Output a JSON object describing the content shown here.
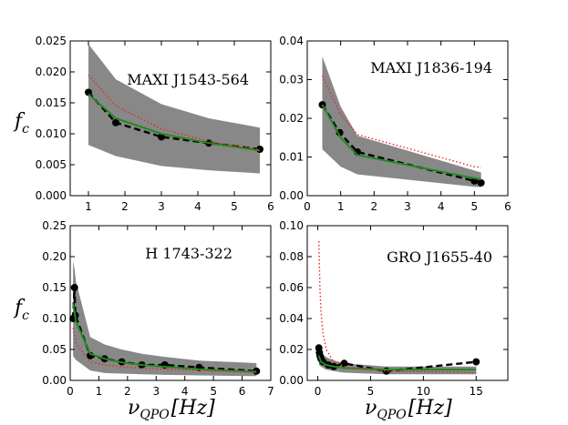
{
  "figure": {
    "y_axis_label": "f",
    "y_axis_label_sub": "c",
    "x_axis_label": "ν",
    "x_axis_label_sub": "QPO",
    "x_axis_label_units": "[Hz]"
  },
  "chart_data": [
    {
      "type": "line",
      "label": "MAXI J1543-564",
      "xlim": [
        0.5,
        6
      ],
      "ylim": [
        0,
        0.025
      ],
      "xticks": [
        1,
        2,
        3,
        4,
        5,
        6
      ],
      "xtick_labels": [
        "1",
        "2",
        "3",
        "4",
        "5",
        "6"
      ],
      "yticks": [
        0.0,
        0.005,
        0.01,
        0.015,
        0.02,
        0.025
      ],
      "ytick_labels": [
        "0.000",
        "0.005",
        "0.010",
        "0.015",
        "0.020",
        "0.025"
      ],
      "band": {
        "x": [
          1.0,
          1.75,
          3.0,
          4.3,
          5.7
        ],
        "upper": [
          0.0245,
          0.0188,
          0.0148,
          0.0125,
          0.011
        ],
        "lower": [
          0.0082,
          0.0064,
          0.0048,
          0.0041,
          0.0036
        ]
      },
      "series": [
        {
          "name": "data",
          "style": "black-dashed-markers",
          "x": [
            1.0,
            1.75,
            3.0,
            4.3,
            5.7
          ],
          "y": [
            0.0167,
            0.0118,
            0.0095,
            0.0085,
            0.0075
          ]
        },
        {
          "name": "model",
          "style": "green-solid",
          "x": [
            1.0,
            1.75,
            3.0,
            4.3,
            5.7
          ],
          "y": [
            0.0164,
            0.0125,
            0.01,
            0.0085,
            0.0073
          ]
        },
        {
          "name": "model-upper",
          "style": "red-dotted",
          "x": [
            1.0,
            1.75,
            3.0,
            4.3,
            5.7
          ],
          "y": [
            0.0195,
            0.0145,
            0.0108,
            0.0088,
            0.0075
          ]
        }
      ]
    },
    {
      "type": "line",
      "label": "MAXI J1836-194",
      "xlim": [
        0,
        6
      ],
      "ylim": [
        0,
        0.04
      ],
      "xticks": [
        0,
        1,
        2,
        3,
        4,
        5,
        6
      ],
      "xtick_labels": [
        "0",
        "1",
        "2",
        "3",
        "4",
        "5",
        "6"
      ],
      "yticks": [
        0.0,
        0.01,
        0.02,
        0.03,
        0.04
      ],
      "ytick_labels": [
        "0.00",
        "0.01",
        "0.02",
        "0.03",
        "0.04"
      ],
      "band": {
        "x": [
          0.45,
          1.0,
          1.5,
          5.0,
          5.2
        ],
        "upper": [
          0.036,
          0.023,
          0.0155,
          0.0065,
          0.006
        ],
        "lower": [
          0.012,
          0.0075,
          0.0055,
          0.0023,
          0.0022
        ]
      },
      "series": [
        {
          "name": "data",
          "style": "black-dashed-markers",
          "x": [
            0.45,
            0.97,
            1.5,
            5.0,
            5.2
          ],
          "y": [
            0.0235,
            0.0163,
            0.0113,
            0.0038,
            0.0033
          ]
        },
        {
          "name": "model",
          "style": "green-solid",
          "x": [
            0.45,
            1.0,
            1.5,
            5.0,
            5.2
          ],
          "y": [
            0.0235,
            0.015,
            0.0105,
            0.0045,
            0.0042
          ]
        },
        {
          "name": "model-upper",
          "style": "red-dotted",
          "x": [
            0.45,
            1.0,
            1.5,
            5.0,
            5.2
          ],
          "y": [
            0.031,
            0.021,
            0.0158,
            0.0075,
            0.0073
          ]
        }
      ]
    },
    {
      "type": "line",
      "label": "H 1743-322",
      "xlim": [
        0,
        7
      ],
      "ylim": [
        0,
        0.25
      ],
      "xticks": [
        0,
        1,
        2,
        3,
        4,
        5,
        6,
        7
      ],
      "xtick_labels": [
        "0",
        "1",
        "2",
        "3",
        "4",
        "5",
        "6",
        "7"
      ],
      "yticks": [
        0.0,
        0.05,
        0.1,
        0.15,
        0.2,
        0.25
      ],
      "ytick_labels": [
        "0.00",
        "0.05",
        "0.10",
        "0.15",
        "0.20",
        "0.25"
      ],
      "band": {
        "x": [
          0.1,
          0.15,
          0.2,
          0.7,
          1.2,
          1.8,
          2.5,
          3.3,
          4.5,
          6.5
        ],
        "upper": [
          0.193,
          0.18,
          0.16,
          0.07,
          0.058,
          0.05,
          0.043,
          0.038,
          0.032,
          0.028
        ],
        "lower": [
          0.04,
          0.036,
          0.033,
          0.016,
          0.012,
          0.011,
          0.01,
          0.009,
          0.008,
          0.007
        ]
      },
      "series": [
        {
          "name": "data",
          "style": "black-dashed-markers",
          "x": [
            0.1,
            0.15,
            0.18,
            0.7,
            1.2,
            1.8,
            2.5,
            3.3,
            4.5,
            6.5
          ],
          "y": [
            0.1,
            0.15,
            0.105,
            0.04,
            0.035,
            0.03,
            0.025,
            0.025,
            0.021,
            0.015
          ]
        },
        {
          "name": "model",
          "style": "green-solid",
          "x": [
            0.1,
            0.2,
            0.7,
            1.2,
            1.8,
            2.5,
            3.3,
            4.5,
            6.5
          ],
          "y": [
            0.125,
            0.095,
            0.043,
            0.035,
            0.029,
            0.025,
            0.022,
            0.018,
            0.014
          ]
        },
        {
          "name": "model-upper",
          "style": "red-dotted",
          "x": [
            0.1,
            0.2,
            0.7,
            1.2,
            1.8,
            2.5,
            3.3,
            4.5,
            6.5
          ],
          "y": [
            0.085,
            0.06,
            0.03,
            0.025,
            0.022,
            0.02,
            0.018,
            0.016,
            0.013
          ]
        }
      ]
    },
    {
      "type": "line",
      "label": "GRO J1655-40",
      "xlim": [
        -1,
        18
      ],
      "ylim": [
        0,
        0.1
      ],
      "xticks": [
        0,
        5,
        10,
        15
      ],
      "xtick_labels": [
        "0",
        "5",
        "10",
        "15"
      ],
      "yticks": [
        0.0,
        0.02,
        0.04,
        0.06,
        0.08,
        0.1
      ],
      "ytick_labels": [
        "0.00",
        "0.02",
        "0.04",
        "0.06",
        "0.08",
        "0.10"
      ],
      "band": {
        "x": [
          0.1,
          0.3,
          0.5,
          0.8,
          1.5,
          2.5,
          6.5,
          15.0
        ],
        "upper": [
          0.021,
          0.019,
          0.017,
          0.015,
          0.013,
          0.011,
          0.009,
          0.009
        ],
        "lower": [
          0.01,
          0.009,
          0.008,
          0.007,
          0.006,
          0.005,
          0.004,
          0.004
        ]
      },
      "series": [
        {
          "name": "data",
          "style": "black-dashed-markers",
          "x": [
            0.1,
            0.15,
            0.2,
            0.3,
            0.5,
            1.0,
            1.5,
            2.5,
            6.5,
            15.0
          ],
          "y": [
            0.021,
            0.018,
            0.016,
            0.014,
            0.012,
            0.01,
            0.009,
            0.011,
            0.006,
            0.012
          ]
        },
        {
          "name": "model",
          "style": "green-solid",
          "x": [
            0.1,
            0.3,
            0.8,
            1.5,
            2.5,
            6.5,
            15.0
          ],
          "y": [
            0.016,
            0.012,
            0.01,
            0.009,
            0.008,
            0.007,
            0.007
          ]
        },
        {
          "name": "model-upper",
          "style": "red-dotted",
          "x": [
            0.1,
            0.2,
            0.3,
            0.5,
            0.8,
            1.5,
            3.0,
            6.5,
            15.0
          ],
          "y": [
            0.09,
            0.06,
            0.045,
            0.03,
            0.02,
            0.012,
            0.008,
            0.006,
            0.005
          ]
        }
      ]
    }
  ]
}
